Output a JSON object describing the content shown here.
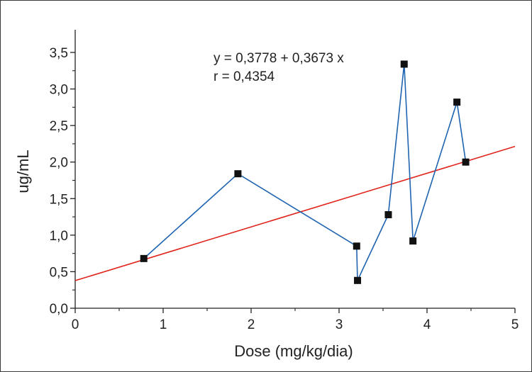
{
  "chart_data": {
    "type": "scatter",
    "xlabel": "Dose (mg/kg/dia)",
    "ylabel": "ug/mL",
    "xlim": [
      0,
      5
    ],
    "ylim": [
      0,
      3.5
    ],
    "x_ticks": [
      "0",
      "1",
      "2",
      "3",
      "4",
      "5"
    ],
    "y_ticks": [
      "0,0",
      "0,5",
      "1,0",
      "1,5",
      "2,0",
      "2,5",
      "3,0",
      "3,5"
    ],
    "grid": false,
    "series": [
      {
        "type": "line",
        "color": "#1f64b0",
        "marker": "square",
        "marker_color": "#111111",
        "points": [
          {
            "x": 0.78,
            "y": 0.68
          },
          {
            "x": 1.85,
            "y": 1.84
          },
          {
            "x": 3.2,
            "y": 0.85
          },
          {
            "x": 3.21,
            "y": 0.38
          },
          {
            "x": 3.56,
            "y": 1.28
          },
          {
            "x": 3.74,
            "y": 3.34
          },
          {
            "x": 3.84,
            "y": 0.92
          },
          {
            "x": 4.34,
            "y": 2.82
          },
          {
            "x": 4.44,
            "y": 2.0
          }
        ]
      }
    ],
    "regression": {
      "color": "#e0231b",
      "intercept": 0.3778,
      "slope": 0.3673,
      "equation": "y = 0,3778 + 0,3673 x",
      "r_text": "r = 0,4354"
    }
  }
}
